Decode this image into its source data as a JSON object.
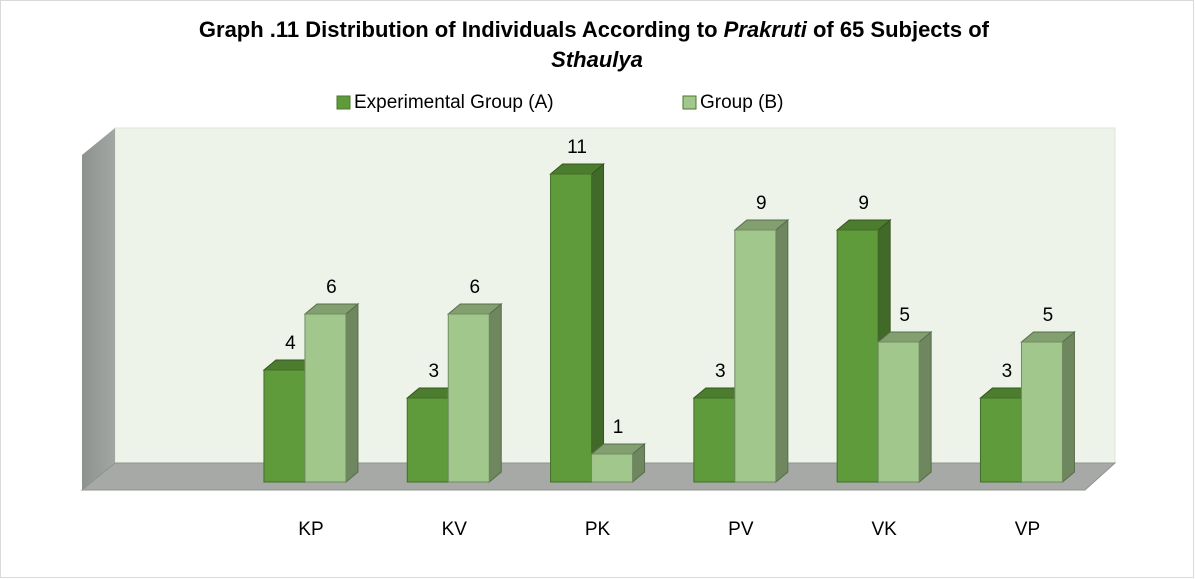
{
  "chart_data": {
    "type": "bar3d",
    "title": [
      "Graph .11 Distribution of Individuals According to ",
      "Prakruti",
      " of 65 Subjects of ",
      "Sthaulya"
    ],
    "categories": [
      null,
      "KP",
      "KV",
      "PK",
      "PV",
      "VK",
      "VP"
    ],
    "series": [
      {
        "name": "Experimental Group (A)",
        "color": "#5f9b3a",
        "values": [
          null,
          4,
          3,
          11,
          3,
          9,
          3
        ]
      },
      {
        "name": "Group (B)",
        "color": "#a2c78c",
        "values": [
          null,
          6,
          6,
          1,
          9,
          5,
          5
        ]
      }
    ],
    "legend": "top"
  }
}
